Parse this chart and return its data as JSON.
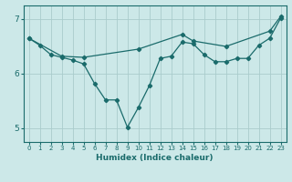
{
  "xlabel": "Humidex (Indice chaleur)",
  "xlim": [
    -0.5,
    23.5
  ],
  "ylim": [
    4.75,
    7.25
  ],
  "yticks": [
    5,
    6,
    7
  ],
  "xticks": [
    0,
    1,
    2,
    3,
    4,
    5,
    6,
    7,
    8,
    9,
    10,
    11,
    12,
    13,
    14,
    15,
    16,
    17,
    18,
    19,
    20,
    21,
    22,
    23
  ],
  "bg_color": "#cce8e8",
  "line_color": "#1a6b6b",
  "grid_color": "#aacccc",
  "line1_x": [
    0,
    1,
    2,
    3,
    4,
    5,
    6,
    7,
    8,
    9,
    10,
    11,
    12,
    13,
    14,
    15,
    16,
    17,
    18,
    19,
    20,
    21,
    22,
    23
  ],
  "line1_y": [
    6.65,
    6.52,
    6.35,
    6.3,
    6.25,
    6.18,
    5.82,
    5.52,
    5.52,
    5.02,
    5.38,
    5.78,
    6.28,
    6.32,
    6.58,
    6.55,
    6.35,
    6.22,
    6.22,
    6.28,
    6.28,
    6.52,
    6.65,
    7.02
  ],
  "line2_x": [
    0,
    3,
    5,
    10,
    14,
    15,
    18,
    22,
    23
  ],
  "line2_y": [
    6.65,
    6.32,
    6.3,
    6.45,
    6.72,
    6.6,
    6.5,
    6.78,
    7.05
  ]
}
